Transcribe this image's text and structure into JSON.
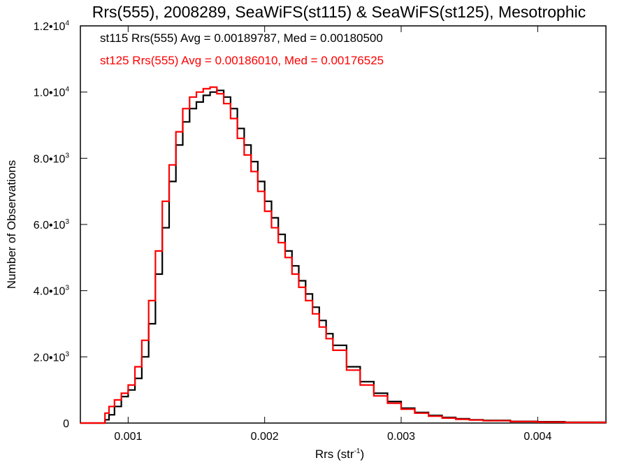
{
  "chart_data": {
    "type": "line",
    "title": "Rrs(555), 2008289, SeaWiFS(st115) & SeaWiFS(st125), Mesotrophic",
    "xlabel": "Rrs (str",
    "xlabel_sup": "-1",
    "xlabel_close": ")",
    "ylabel": "Number of Observations",
    "xlim": [
      0.00065,
      0.0045
    ],
    "ylim": [
      0,
      12000
    ],
    "x_ticks": [
      {
        "value": 0.001,
        "label": "0.001"
      },
      {
        "value": 0.002,
        "label": "0.002"
      },
      {
        "value": 0.003,
        "label": "0.003"
      },
      {
        "value": 0.004,
        "label": "0.004"
      }
    ],
    "y_ticks": [
      {
        "value": 0,
        "mant": "0",
        "exp": ""
      },
      {
        "value": 2000,
        "mant": "2.0•10",
        "exp": "3"
      },
      {
        "value": 4000,
        "mant": "4.0•10",
        "exp": "3"
      },
      {
        "value": 6000,
        "mant": "6.0•10",
        "exp": "3"
      },
      {
        "value": 8000,
        "mant": "8.0•10",
        "exp": "3"
      },
      {
        "value": 10000,
        "mant": "1.0•10",
        "exp": "4"
      },
      {
        "value": 12000,
        "mant": "1.2•10",
        "exp": "4"
      }
    ],
    "grid": false,
    "annotations": [
      {
        "text": "st115 Rrs(555) Avg = 0.00189787, Med = 0.00180500",
        "color": "#000000"
      },
      {
        "text": "st125 Rrs(555) Avg = 0.00186010, Med = 0.00176525",
        "color": "#ff0000"
      }
    ],
    "series": [
      {
        "color": "#000000",
        "x": [
          0.00065,
          0.0008,
          0.00083,
          0.00086,
          0.0009,
          0.00095,
          0.001,
          0.00105,
          0.0011,
          0.00115,
          0.0012,
          0.00125,
          0.0013,
          0.00135,
          0.0014,
          0.00145,
          0.0015,
          0.00155,
          0.0016,
          0.00165,
          0.0017,
          0.00175,
          0.0018,
          0.00185,
          0.0019,
          0.00195,
          0.002,
          0.00205,
          0.0021,
          0.00215,
          0.0022,
          0.00225,
          0.0023,
          0.00235,
          0.0024,
          0.00245,
          0.0025,
          0.0026,
          0.0027,
          0.0028,
          0.0029,
          0.003,
          0.0031,
          0.0032,
          0.0033,
          0.0034,
          0.0035,
          0.0036,
          0.0038,
          0.004,
          0.0042,
          0.0045
        ],
        "values": [
          0,
          0,
          100,
          250,
          500,
          800,
          1000,
          1350,
          2000,
          3000,
          4500,
          5900,
          7300,
          8400,
          9100,
          9500,
          9700,
          9900,
          10000,
          10050,
          9850,
          9500,
          8900,
          8400,
          7900,
          7300,
          6700,
          6200,
          5700,
          5200,
          4750,
          4300,
          3900,
          3500,
          3100,
          2700,
          2350,
          1700,
          1250,
          900,
          650,
          450,
          320,
          230,
          170,
          130,
          100,
          80,
          50,
          40,
          25,
          10
        ]
      },
      {
        "color": "#ff0000",
        "x": [
          0.00065,
          0.0008,
          0.00083,
          0.00086,
          0.0009,
          0.00095,
          0.001,
          0.00105,
          0.0011,
          0.00115,
          0.0012,
          0.00125,
          0.0013,
          0.00135,
          0.0014,
          0.00145,
          0.0015,
          0.00155,
          0.0016,
          0.00165,
          0.0017,
          0.00175,
          0.0018,
          0.00185,
          0.0019,
          0.00195,
          0.002,
          0.00205,
          0.0021,
          0.00215,
          0.0022,
          0.00225,
          0.0023,
          0.00235,
          0.0024,
          0.00245,
          0.0025,
          0.0026,
          0.0027,
          0.0028,
          0.0029,
          0.003,
          0.0031,
          0.0032,
          0.0033,
          0.0034,
          0.0035,
          0.0036,
          0.0038,
          0.004,
          0.0042,
          0.0045
        ],
        "values": [
          0,
          0,
          300,
          500,
          700,
          900,
          1150,
          1700,
          2500,
          3700,
          5200,
          6700,
          7800,
          8800,
          9500,
          9850,
          10000,
          10100,
          10150,
          9950,
          9650,
          9200,
          8600,
          8100,
          7600,
          7000,
          6400,
          5900,
          5450,
          5000,
          4500,
          4100,
          3700,
          3300,
          2900,
          2550,
          2200,
          1600,
          1150,
          820,
          600,
          420,
          300,
          210,
          150,
          115,
          90,
          70,
          45,
          30,
          20,
          10
        ]
      }
    ]
  }
}
